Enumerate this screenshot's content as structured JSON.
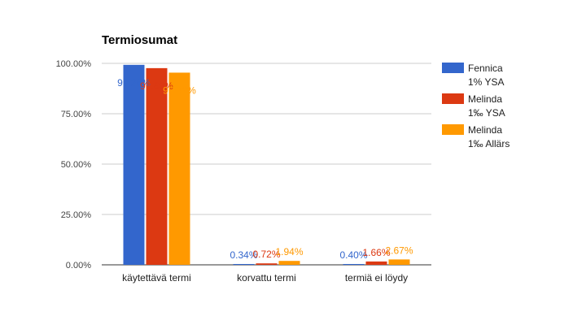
{
  "chart_data": {
    "type": "bar",
    "title": "Termiosumat",
    "xlabel": "",
    "ylabel": "",
    "categories": [
      "käytettävä termi",
      "korvattu termi",
      "termiä ei löydy"
    ],
    "series": [
      {
        "name": "Fennica 1% YSA",
        "name_lines": [
          "Fennica",
          "1% YSA"
        ],
        "color": "#3366cc",
        "values": [
          99.26,
          0.34,
          0.4
        ],
        "labels": [
          "99.26%",
          "0.34%",
          "0.40%"
        ]
      },
      {
        "name": "Melinda 1‰ YSA",
        "name_lines": [
          "Melinda",
          "1‰ YSA"
        ],
        "color": "#dc3912",
        "values": [
          97.63,
          0.72,
          1.66
        ],
        "labels": [
          "97.63%",
          "0.72%",
          "1.66%"
        ]
      },
      {
        "name": "Melinda 1‰ Allärs",
        "name_lines": [
          "Melinda",
          "1‰ Allärs"
        ],
        "color": "#ff9900",
        "values": [
          95.39,
          1.94,
          2.67
        ],
        "labels": [
          "95.39%",
          "1.94%",
          "2.67%"
        ]
      }
    ],
    "ylim": [
      0,
      100
    ],
    "yticks": [
      0,
      25,
      50,
      75,
      100
    ],
    "ytick_labels": [
      "0.00%",
      "25.00%",
      "50.00%",
      "75.00%",
      "100.00%"
    ],
    "grid": true,
    "legend_position": "right"
  }
}
